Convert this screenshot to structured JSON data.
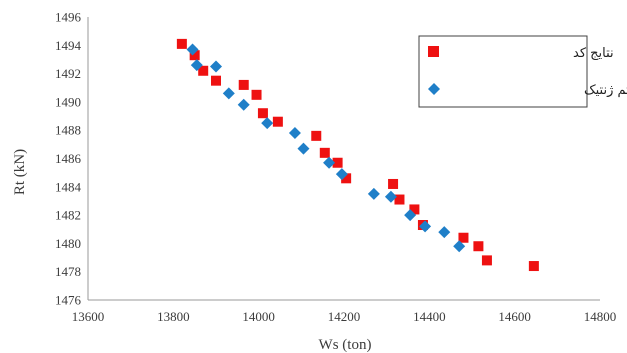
{
  "chart_data": {
    "type": "scatter",
    "xlabel": "Ws (ton)",
    "ylabel": "Rt (kN)",
    "xlim": [
      13600,
      14800
    ],
    "ylim": [
      1476,
      1496
    ],
    "xticks": [
      13600,
      13800,
      14000,
      14200,
      14400,
      14600,
      14800
    ],
    "yticks": [
      1476,
      1478,
      1480,
      1482,
      1484,
      1486,
      1488,
      1490,
      1492,
      1494,
      1496
    ],
    "legend_position": "top-right",
    "grid": false,
    "series": [
      {
        "name": "نتایج کد",
        "marker": "square",
        "color": "#ee1111",
        "points": [
          [
            13820,
            1494.1
          ],
          [
            13850,
            1493.3
          ],
          [
            13870,
            1492.2
          ],
          [
            13900,
            1491.5
          ],
          [
            13965,
            1491.2
          ],
          [
            13995,
            1490.5
          ],
          [
            14010,
            1489.2
          ],
          [
            14045,
            1488.6
          ],
          [
            14135,
            1487.6
          ],
          [
            14155,
            1486.4
          ],
          [
            14185,
            1485.7
          ],
          [
            14205,
            1484.6
          ],
          [
            14315,
            1484.2
          ],
          [
            14330,
            1483.1
          ],
          [
            14365,
            1482.4
          ],
          [
            14385,
            1481.3
          ],
          [
            14480,
            1480.4
          ],
          [
            14515,
            1479.8
          ],
          [
            14535,
            1478.8
          ],
          [
            14645,
            1478.4
          ]
        ]
      },
      {
        "name": "نتایج الگوریتم ژنتیک",
        "marker": "diamond",
        "color": "#1f7fc8",
        "points": [
          [
            13845,
            1493.7
          ],
          [
            13855,
            1492.6
          ],
          [
            13900,
            1492.5
          ],
          [
            13930,
            1490.6
          ],
          [
            13965,
            1489.8
          ],
          [
            14020,
            1488.5
          ],
          [
            14085,
            1487.8
          ],
          [
            14105,
            1486.7
          ],
          [
            14165,
            1485.7
          ],
          [
            14195,
            1484.9
          ],
          [
            14270,
            1483.5
          ],
          [
            14310,
            1483.3
          ],
          [
            14355,
            1482.0
          ],
          [
            14390,
            1481.2
          ],
          [
            14435,
            1480.8
          ],
          [
            14470,
            1479.8
          ]
        ]
      }
    ]
  }
}
